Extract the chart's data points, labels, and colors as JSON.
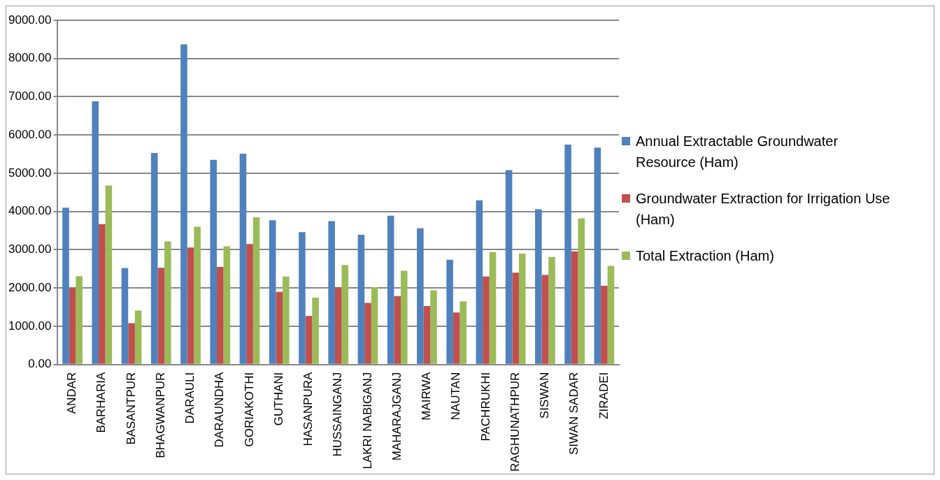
{
  "chart_data": {
    "type": "bar",
    "categories": [
      "ANDAR",
      "BARHARIA",
      "BASANTPUR",
      "BHAGWANPUR",
      "DARAULI",
      "DARAUNDHA",
      "GORIAKOTHI",
      "GUTHANI",
      "HASANPURA",
      "HUSSAINGANJ",
      "LAKRI NABIGANJ",
      "MAHARAJGANJ",
      "MAIRWA",
      "NAUTAN",
      "PACHRUKHI",
      "RAGHUNATHPUR",
      "SISWAN",
      "SIWAN SADAR",
      "ZIRADEI"
    ],
    "series": [
      {
        "name": "Annual Extractable Groundwater Resource (Ham)",
        "color": "#4f81bd",
        "values": [
          4100,
          6880,
          2520,
          5530,
          8370,
          5350,
          5510,
          3770,
          3460,
          3750,
          3390,
          3890,
          3560,
          2740,
          4290,
          5080,
          4060,
          5750,
          5670
        ]
      },
      {
        "name": "Groundwater Extraction for Irrigation Use (Ham)",
        "color": "#c0504d",
        "values": [
          2000,
          3670,
          1080,
          2530,
          3060,
          2550,
          3150,
          1900,
          1270,
          2020,
          1610,
          1790,
          1530,
          1360,
          2300,
          2400,
          2340,
          2960,
          2060
        ]
      },
      {
        "name": "Total Extraction (Ham)",
        "color": "#9bbb59",
        "values": [
          2310,
          4680,
          1410,
          3220,
          3600,
          3090,
          3850,
          2300,
          1750,
          2600,
          2020,
          2450,
          1940,
          1650,
          2940,
          2900,
          2810,
          3820,
          2580
        ]
      }
    ],
    "ylim": [
      0,
      9000
    ],
    "yticks": [
      {
        "value": 0,
        "label": "0.00"
      },
      {
        "value": 1000,
        "label": "1000.00"
      },
      {
        "value": 2000,
        "label": "2000.00"
      },
      {
        "value": 3000,
        "label": "3000.00"
      },
      {
        "value": 4000,
        "label": "4000.00"
      },
      {
        "value": 5000,
        "label": "5000.00"
      },
      {
        "value": 6000,
        "label": "6000.00"
      },
      {
        "value": 7000,
        "label": "7000.00"
      },
      {
        "value": 8000,
        "label": "8000.00"
      },
      {
        "value": 9000,
        "label": "9000.00"
      }
    ],
    "grid": "y",
    "legend": "right"
  }
}
